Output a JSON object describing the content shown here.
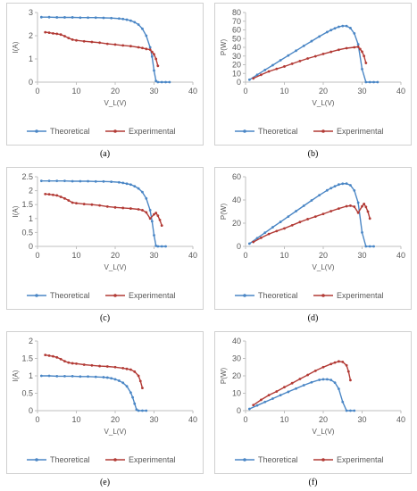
{
  "colors": {
    "theoretical": "#4a86c5",
    "experimental": "#b23a35",
    "axis": "#bfbfbf",
    "grid": "#e6e6e6"
  },
  "legend": {
    "theoretical": "Theoretical",
    "experimental": "Experimental"
  },
  "chart_data": [
    {
      "type": "line",
      "caption": "(a)",
      "xlabel": "V_L(V)",
      "ylabel": "I(A)",
      "xlim": [
        0,
        40
      ],
      "ylim": [
        0,
        3
      ],
      "xticks": [
        0,
        10,
        20,
        30,
        40
      ],
      "yticks": [
        0,
        1,
        2,
        3
      ],
      "legend_position": "bottom",
      "series": [
        {
          "name": "Theoretical",
          "x": [
            1,
            3,
            5,
            7,
            9,
            11,
            13,
            15,
            17,
            19,
            21,
            22,
            23,
            24,
            25,
            26,
            27,
            28,
            29,
            29.5,
            30,
            30.5,
            31,
            32,
            33,
            34
          ],
          "y": [
            2.8,
            2.8,
            2.79,
            2.79,
            2.79,
            2.78,
            2.78,
            2.78,
            2.77,
            2.76,
            2.74,
            2.72,
            2.69,
            2.65,
            2.58,
            2.48,
            2.3,
            2.0,
            1.5,
            1.1,
            0.5,
            0.05,
            0,
            0,
            0,
            0
          ]
        },
        {
          "name": "Experimental",
          "x": [
            2,
            3,
            4,
            5,
            6,
            7,
            8,
            9,
            10,
            12,
            14,
            16,
            18,
            20,
            22,
            24,
            26,
            27,
            28,
            29,
            29.5,
            30,
            30.5,
            31
          ],
          "y": [
            2.15,
            2.13,
            2.1,
            2.08,
            2.05,
            1.98,
            1.9,
            1.83,
            1.8,
            1.76,
            1.73,
            1.7,
            1.65,
            1.62,
            1.58,
            1.55,
            1.5,
            1.47,
            1.43,
            1.4,
            1.3,
            1.2,
            1.0,
            0.7
          ]
        }
      ]
    },
    {
      "type": "line",
      "caption": "(b)",
      "xlabel": "V_L(V)",
      "ylabel": "P(W)",
      "xlim": [
        0,
        40
      ],
      "ylim": [
        0,
        80
      ],
      "xticks": [
        0,
        10,
        20,
        30,
        40
      ],
      "yticks": [
        0,
        10,
        20,
        30,
        40,
        50,
        60,
        70,
        80
      ],
      "legend_position": "bottom",
      "series": [
        {
          "name": "Theoretical",
          "x": [
            1,
            3,
            5,
            7,
            9,
            11,
            13,
            15,
            17,
            19,
            21,
            22,
            23,
            24,
            25,
            26,
            27,
            28,
            29,
            30,
            31,
            32,
            33,
            34
          ],
          "y": [
            2.8,
            8.4,
            14,
            19.5,
            25.1,
            30.6,
            36.1,
            41.7,
            47.1,
            52.4,
            57.5,
            59.8,
            61.8,
            63.6,
            64.5,
            64.5,
            62.1,
            56,
            43.5,
            15,
            0,
            0,
            0,
            0
          ]
        },
        {
          "name": "Experimental",
          "x": [
            2,
            4,
            6,
            8,
            10,
            12,
            14,
            16,
            18,
            20,
            22,
            24,
            26,
            28,
            29,
            29.5,
            30,
            30.5,
            31
          ],
          "y": [
            4.3,
            8.4,
            12.3,
            15.2,
            18,
            21.1,
            24.2,
            27.2,
            29.7,
            32.4,
            34.8,
            37.2,
            39,
            40,
            40.6,
            38,
            35,
            30,
            22
          ]
        }
      ]
    },
    {
      "type": "line",
      "caption": "(c)",
      "xlabel": "V_L(V)",
      "ylabel": "I(A)",
      "xlim": [
        0,
        40
      ],
      "ylim": [
        0,
        2.5
      ],
      "xticks": [
        0,
        10,
        20,
        30,
        40
      ],
      "yticks": [
        0,
        0.5,
        1,
        1.5,
        2,
        2.5
      ],
      "legend_position": "bottom",
      "series": [
        {
          "name": "Theoretical",
          "x": [
            1,
            3,
            5,
            7,
            9,
            11,
            13,
            15,
            17,
            19,
            21,
            22,
            23,
            24,
            25,
            26,
            27,
            28,
            29,
            29.5,
            30,
            30.5,
            31,
            32,
            33
          ],
          "y": [
            2.35,
            2.35,
            2.35,
            2.35,
            2.34,
            2.34,
            2.34,
            2.33,
            2.33,
            2.32,
            2.3,
            2.28,
            2.25,
            2.22,
            2.16,
            2.08,
            1.95,
            1.72,
            1.3,
            0.9,
            0.4,
            0.02,
            0,
            0,
            0
          ]
        },
        {
          "name": "Experimental",
          "x": [
            2,
            3,
            4,
            5,
            6,
            7,
            8,
            9,
            10,
            12,
            14,
            16,
            18,
            20,
            22,
            24,
            26,
            27,
            28,
            29,
            30,
            30.5,
            31,
            31.5,
            32
          ],
          "y": [
            1.88,
            1.87,
            1.85,
            1.83,
            1.78,
            1.72,
            1.65,
            1.57,
            1.55,
            1.52,
            1.5,
            1.47,
            1.43,
            1.4,
            1.38,
            1.36,
            1.33,
            1.3,
            1.22,
            1.0,
            1.15,
            1.2,
            1.1,
            0.95,
            0.75
          ]
        }
      ]
    },
    {
      "type": "line",
      "caption": "(d)",
      "xlabel": "V_L(V)",
      "ylabel": "P(W)",
      "xlim": [
        0,
        40
      ],
      "ylim": [
        0,
        60
      ],
      "xticks": [
        0,
        10,
        20,
        30,
        40
      ],
      "yticks": [
        0,
        20,
        40,
        60
      ],
      "legend_position": "bottom",
      "series": [
        {
          "name": "Theoretical",
          "x": [
            1,
            3,
            5,
            7,
            9,
            11,
            13,
            15,
            17,
            19,
            21,
            22,
            23,
            24,
            25,
            26,
            27,
            28,
            29,
            30,
            31,
            32,
            33
          ],
          "y": [
            2.4,
            7.1,
            11.8,
            16.5,
            21.1,
            25.7,
            30.4,
            35,
            39.6,
            44.1,
            48.3,
            50.2,
            51.8,
            53.3,
            54,
            54.1,
            52.7,
            48.2,
            37.7,
            12,
            0,
            0,
            0
          ]
        },
        {
          "name": "Experimental",
          "x": [
            2,
            4,
            6,
            8,
            10,
            12,
            14,
            16,
            18,
            20,
            22,
            24,
            26,
            27,
            28,
            29,
            30,
            30.5,
            31,
            31.5,
            32
          ],
          "y": [
            3.8,
            7.4,
            10.7,
            13.2,
            15.5,
            18.2,
            21,
            23.5,
            25.7,
            28,
            30.4,
            32.6,
            34.6,
            35.1,
            34.2,
            29,
            34.5,
            36.6,
            34,
            30,
            24
          ]
        }
      ]
    },
    {
      "type": "line",
      "caption": "(e)",
      "xlabel": "V_L(V)",
      "ylabel": "I(A)",
      "xlim": [
        0,
        40
      ],
      "ylim": [
        0,
        2
      ],
      "xticks": [
        0,
        10,
        20,
        30,
        40
      ],
      "yticks": [
        0,
        0.5,
        1,
        1.5,
        2
      ],
      "legend_position": "bottom",
      "series": [
        {
          "name": "Theoretical",
          "x": [
            1,
            3,
            5,
            7,
            9,
            11,
            13,
            15,
            17,
            18,
            19,
            20,
            21,
            22,
            23,
            24,
            24.5,
            25,
            25.5,
            26,
            27,
            28
          ],
          "y": [
            1.0,
            1.0,
            0.99,
            0.99,
            0.99,
            0.98,
            0.98,
            0.97,
            0.96,
            0.95,
            0.93,
            0.9,
            0.86,
            0.8,
            0.7,
            0.52,
            0.38,
            0.2,
            0.03,
            0,
            0,
            0
          ]
        },
        {
          "name": "Experimental",
          "x": [
            2,
            3,
            4,
            5,
            6,
            7,
            8,
            9,
            10,
            12,
            14,
            16,
            18,
            20,
            22,
            23,
            24,
            25,
            26,
            26.5,
            27
          ],
          "y": [
            1.6,
            1.58,
            1.56,
            1.53,
            1.48,
            1.42,
            1.38,
            1.36,
            1.35,
            1.32,
            1.3,
            1.28,
            1.27,
            1.25,
            1.22,
            1.2,
            1.18,
            1.12,
            1.0,
            0.85,
            0.65
          ]
        }
      ]
    },
    {
      "type": "line",
      "caption": "(f)",
      "xlabel": "V_L(V)",
      "ylabel": "P(W)",
      "xlim": [
        0,
        40
      ],
      "ylim": [
        0,
        40
      ],
      "xticks": [
        0,
        10,
        20,
        30,
        40
      ],
      "yticks": [
        0,
        10,
        20,
        30,
        40
      ],
      "legend_position": "bottom",
      "series": [
        {
          "name": "Theoretical",
          "x": [
            1,
            3,
            5,
            7,
            9,
            11,
            13,
            15,
            17,
            19,
            20,
            21,
            22,
            23,
            24,
            25,
            26,
            27,
            28
          ],
          "y": [
            1,
            3,
            5,
            6.9,
            8.9,
            10.8,
            12.7,
            14.6,
            16.3,
            17.7,
            18,
            18,
            17.6,
            16.1,
            12.5,
            5,
            0,
            0,
            0
          ]
        },
        {
          "name": "Experimental",
          "x": [
            2,
            4,
            6,
            8,
            10,
            12,
            14,
            16,
            18,
            20,
            22,
            23,
            24,
            25,
            26,
            26.5,
            27
          ],
          "y": [
            3.2,
            6.2,
            8.9,
            11,
            13.5,
            15.8,
            18.2,
            20.5,
            22.9,
            25,
            26.8,
            27.6,
            28.3,
            28,
            26,
            22.5,
            17.5
          ]
        }
      ]
    }
  ]
}
